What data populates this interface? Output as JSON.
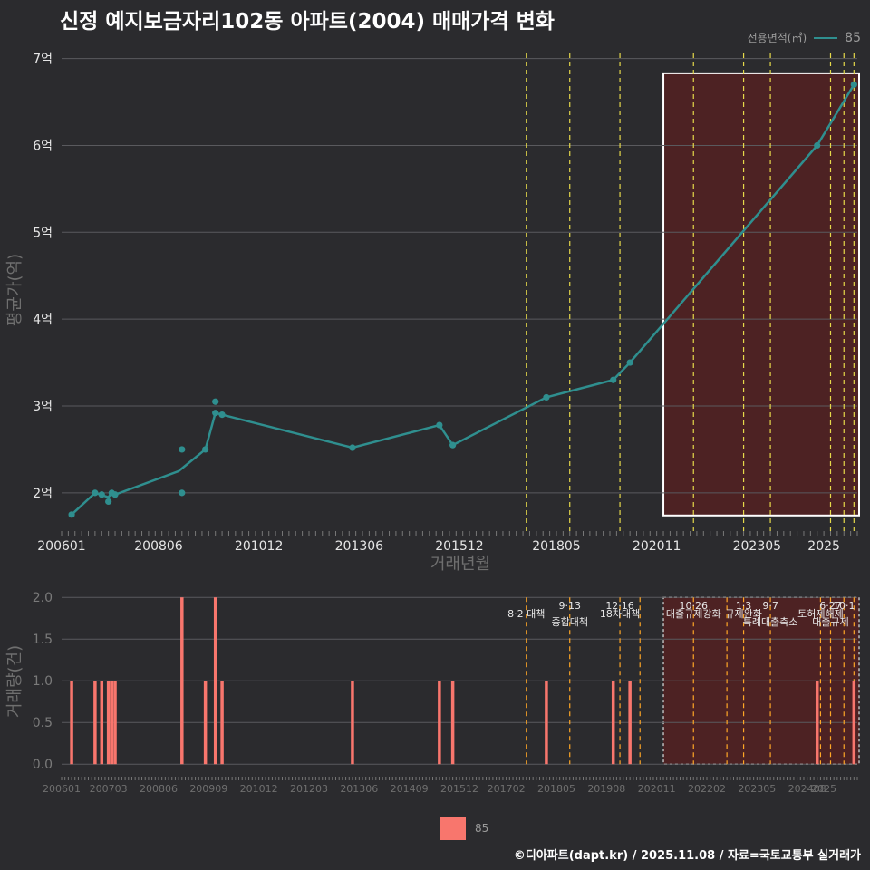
{
  "title": "신정 예지보금자리102동 아파트(2004) 매매가격 변화",
  "legend": {
    "title": "전용면적(㎡)",
    "item": "85"
  },
  "footer": "©디아파트(dapt.kr) / 2025.11.08 / 자료=국토교통부 실거래가",
  "colors": {
    "line": "#2f8f8f",
    "bar": "#f8766d",
    "event": "#e6d94a",
    "event2": "#ffa726",
    "shade": "#5a2020"
  },
  "chart_data": [
    {
      "type": "line",
      "title": "",
      "xlabel": "거래년월",
      "ylabel": "평균가(억)",
      "ylim": [
        1.55,
        7.1
      ],
      "x_range": [
        "2006-01",
        "2025-11"
      ],
      "x_ticks": [
        "200601",
        "200806",
        "201012",
        "201306",
        "201512",
        "201805",
        "202011",
        "202305",
        "2025"
      ],
      "y_ticks": [
        {
          "value": 2,
          "label": "2억"
        },
        {
          "value": 3,
          "label": "3억"
        },
        {
          "value": 4,
          "label": "4억"
        },
        {
          "value": 5,
          "label": "5억"
        },
        {
          "value": 6,
          "label": "6억"
        },
        {
          "value": 7,
          "label": "7억"
        }
      ],
      "series": [
        {
          "name": "85",
          "line": [
            {
              "x": "2006-04",
              "y": 1.75
            },
            {
              "x": "2006-11",
              "y": 2.0
            },
            {
              "x": "2007-03",
              "y": 1.95
            },
            {
              "x": "2007-04",
              "y": 2.0
            },
            {
              "x": "2007-05",
              "y": 1.98
            },
            {
              "x": "2008-12",
              "y": 2.25
            },
            {
              "x": "2009-08",
              "y": 2.5
            },
            {
              "x": "2009-11",
              "y": 2.92
            },
            {
              "x": "2010-01",
              "y": 2.9
            },
            {
              "x": "2013-04",
              "y": 2.52
            },
            {
              "x": "2015-06",
              "y": 2.78
            },
            {
              "x": "2015-10",
              "y": 2.55
            },
            {
              "x": "2018-02",
              "y": 3.1
            },
            {
              "x": "2019-10",
              "y": 3.3
            },
            {
              "x": "2020-03",
              "y": 3.5
            },
            {
              "x": "2024-11",
              "y": 6.0
            },
            {
              "x": "2025-10",
              "y": 6.7
            }
          ],
          "points": [
            {
              "x": "2006-04",
              "y": 1.75
            },
            {
              "x": "2006-11",
              "y": 2.0
            },
            {
              "x": "2007-01",
              "y": 1.98
            },
            {
              "x": "2007-03",
              "y": 1.9
            },
            {
              "x": "2007-04",
              "y": 2.0
            },
            {
              "x": "2007-05",
              "y": 1.98
            },
            {
              "x": "2009-01",
              "y": 2.5
            },
            {
              "x": "2009-01",
              "y": 2.0
            },
            {
              "x": "2009-08",
              "y": 2.5
            },
            {
              "x": "2009-11",
              "y": 3.05
            },
            {
              "x": "2009-11",
              "y": 2.92
            },
            {
              "x": "2010-01",
              "y": 2.9
            },
            {
              "x": "2013-04",
              "y": 2.52
            },
            {
              "x": "2015-06",
              "y": 2.78
            },
            {
              "x": "2015-10",
              "y": 2.55
            },
            {
              "x": "2018-02",
              "y": 3.1
            },
            {
              "x": "2019-10",
              "y": 3.3
            },
            {
              "x": "2020-03",
              "y": 3.5
            },
            {
              "x": "2024-11",
              "y": 6.0
            },
            {
              "x": "2025-10",
              "y": 6.7
            }
          ]
        }
      ],
      "event_lines": [
        "2017-08",
        "2018-09",
        "2019-12",
        "2021-10",
        "2023-01",
        "2023-09",
        "2025-03",
        "2025-07",
        "2025-10"
      ],
      "highlight_range": [
        "2021-01",
        "2025-11"
      ]
    },
    {
      "type": "bar",
      "title": "",
      "xlabel": "",
      "ylabel": "거래량(건)",
      "ylim": [
        -0.15,
        2.1
      ],
      "y_ticks": [
        "0.0",
        "0.5",
        "1.0",
        "1.5",
        "2.0"
      ],
      "x_ticks": [
        "200601",
        "200703",
        "200806",
        "200909",
        "201012",
        "201203",
        "201306",
        "201409",
        "201512",
        "201702",
        "201805",
        "201908",
        "202011",
        "202202",
        "202305",
        "202408",
        "2025"
      ],
      "series": [
        {
          "name": "85",
          "bars": [
            {
              "x": "2006-04",
              "y": 1
            },
            {
              "x": "2006-11",
              "y": 1
            },
            {
              "x": "2007-01",
              "y": 1
            },
            {
              "x": "2007-03",
              "y": 1
            },
            {
              "x": "2007-04",
              "y": 1
            },
            {
              "x": "2007-05",
              "y": 1
            },
            {
              "x": "2009-01",
              "y": 2
            },
            {
              "x": "2009-08",
              "y": 1
            },
            {
              "x": "2009-11",
              "y": 2
            },
            {
              "x": "2010-01",
              "y": 1
            },
            {
              "x": "2013-04",
              "y": 1
            },
            {
              "x": "2015-06",
              "y": 1
            },
            {
              "x": "2015-10",
              "y": 1
            },
            {
              "x": "2018-02",
              "y": 1
            },
            {
              "x": "2019-10",
              "y": 1
            },
            {
              "x": "2020-03",
              "y": 1
            },
            {
              "x": "2024-11",
              "y": 1
            },
            {
              "x": "2025-10",
              "y": 1
            }
          ]
        }
      ],
      "events": [
        {
          "x": "2017-08",
          "date": "",
          "name": "8·2 대책"
        },
        {
          "x": "2018-09",
          "date": "9·13",
          "name": "종합대책"
        },
        {
          "x": "2019-12",
          "date": "12·16",
          "name": "18차대책"
        },
        {
          "x": "2020-06",
          "date": "",
          "name": ""
        },
        {
          "x": "2021-10",
          "date": "10·26",
          "name": "대출규제강화"
        },
        {
          "x": "2022-08",
          "date": "",
          "name": ""
        },
        {
          "x": "2023-01",
          "date": "1·3",
          "name": "규제완화"
        },
        {
          "x": "2023-09",
          "date": "9·7",
          "name": "특례대출축소"
        },
        {
          "x": "2024-12",
          "date": "",
          "name": "토허제해제"
        },
        {
          "x": "2025-03",
          "date": "6·27",
          "name": "대출규제"
        },
        {
          "x": "2025-07",
          "date": "10·1",
          "name": ""
        },
        {
          "x": "2025-10",
          "date": "",
          "name": ""
        }
      ],
      "highlight_range": [
        "2021-01",
        "2025-11"
      ]
    }
  ]
}
